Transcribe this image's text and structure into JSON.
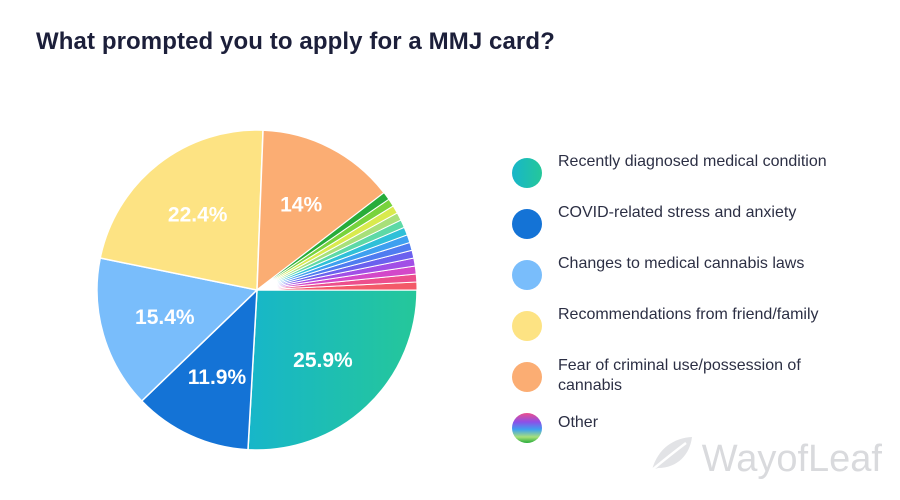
{
  "chart_data": {
    "type": "pie",
    "title": "What prompted you to apply for a MMJ card?",
    "slices": [
      {
        "label": "Recently diagnosed medical condition",
        "value": 25.9,
        "display": "25.9%",
        "color": "#1bbfb0"
      },
      {
        "label": "COVID-related stress and anxiety",
        "value": 11.9,
        "display": "11.9%",
        "color": "#1473d6"
      },
      {
        "label": "Changes to medical cannabis laws",
        "value": 15.4,
        "display": "15.4%",
        "color": "#79bdfb"
      },
      {
        "label": "Recommendations from friend/family",
        "value": 22.4,
        "display": "22.4%",
        "color": "#fde383"
      },
      {
        "label": "Fear of criminal use/possession of cannabis",
        "value": 14,
        "display": "14%",
        "color": "#fbad73"
      },
      {
        "label": "Other",
        "value": 10.4,
        "display": "",
        "color": "multicolor"
      }
    ],
    "other_band_colors": [
      "#f35a68",
      "#ec4f8c",
      "#d348c9",
      "#a14fe6",
      "#6b61ee",
      "#4f7cf0",
      "#3ea0f0",
      "#2fc0d8",
      "#5dd9a6",
      "#a8e07a",
      "#d9ea4e",
      "#78d33c",
      "#27ac3a"
    ],
    "legend_position": "right"
  },
  "watermark": {
    "text": "WayofLeaf",
    "icon": "leaf-icon"
  }
}
